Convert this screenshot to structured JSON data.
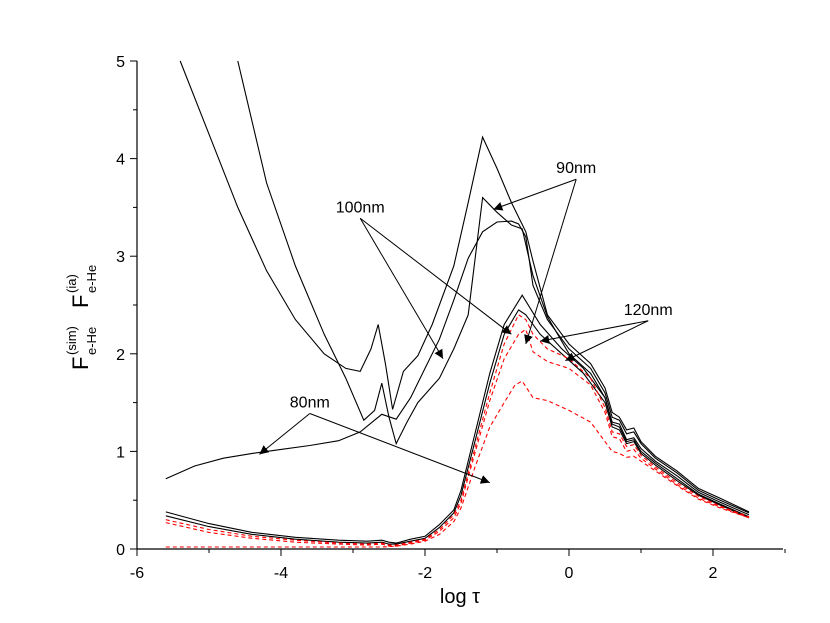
{
  "chart_data": {
    "type": "line",
    "xlabel": "log τ",
    "ylabel": {
      "part1": {
        "main": "F",
        "sup": "(sim)",
        "sub": "e-He"
      },
      "part2": {
        "main": "F",
        "sup": "(ia)",
        "sub": "e-He"
      }
    },
    "xlim": [
      -6,
      3
    ],
    "ylim": [
      0,
      5
    ],
    "xticks": [
      -6,
      -4,
      -2,
      0,
      2
    ],
    "yticks": [
      0,
      1,
      2,
      3,
      4,
      5
    ],
    "grid": false,
    "legend": "none",
    "colors": {
      "solid": "#000000",
      "dashed": "#ff0000"
    },
    "series": [
      {
        "style": "solid",
        "points": [
          [
            -5.6,
            0.72
          ],
          [
            -5.2,
            0.85
          ],
          [
            -4.8,
            0.93
          ],
          [
            -4.4,
            0.98
          ],
          [
            -4.0,
            1.02
          ],
          [
            -3.6,
            1.06
          ],
          [
            -3.2,
            1.11
          ],
          [
            -2.9,
            1.2
          ],
          [
            -2.6,
            1.38
          ],
          [
            -2.4,
            1.33
          ],
          [
            -2.2,
            1.55
          ],
          [
            -2.0,
            1.85
          ],
          [
            -1.8,
            2.15
          ],
          [
            -1.6,
            2.55
          ],
          [
            -1.4,
            2.98
          ],
          [
            -1.2,
            3.25
          ],
          [
            -1.0,
            3.35
          ],
          [
            -0.8,
            3.36
          ],
          [
            -0.7,
            3.33
          ],
          [
            -0.6,
            3.2
          ],
          [
            -0.5,
            2.7
          ],
          [
            -0.3,
            2.35
          ],
          [
            0,
            2.05
          ],
          [
            0.3,
            1.85
          ],
          [
            0.5,
            1.6
          ],
          [
            0.6,
            1.35
          ],
          [
            0.7,
            1.32
          ],
          [
            0.8,
            1.18
          ],
          [
            0.9,
            1.2
          ],
          [
            1.0,
            1.08
          ],
          [
            1.2,
            0.93
          ],
          [
            1.5,
            0.78
          ],
          [
            1.8,
            0.6
          ],
          [
            2.1,
            0.5
          ],
          [
            2.5,
            0.37
          ]
        ]
      },
      {
        "style": "solid",
        "points": [
          [
            -5.4,
            5.0
          ],
          [
            -5.0,
            4.25
          ],
          [
            -4.6,
            3.5
          ],
          [
            -4.2,
            2.85
          ],
          [
            -3.8,
            2.35
          ],
          [
            -3.4,
            2.0
          ],
          [
            -3.1,
            1.85
          ],
          [
            -2.9,
            1.82
          ],
          [
            -2.75,
            2.05
          ],
          [
            -2.65,
            2.3
          ],
          [
            -2.55,
            1.9
          ],
          [
            -2.45,
            1.43
          ],
          [
            -2.3,
            1.82
          ],
          [
            -2.1,
            1.98
          ],
          [
            -1.9,
            2.3
          ],
          [
            -1.6,
            2.9
          ],
          [
            -1.4,
            3.55
          ],
          [
            -1.2,
            4.22
          ],
          [
            -1.0,
            3.9
          ],
          [
            -0.8,
            3.55
          ],
          [
            -0.6,
            3.25
          ],
          [
            -0.5,
            2.95
          ],
          [
            -0.3,
            2.4
          ],
          [
            0,
            2.1
          ],
          [
            0.3,
            1.9
          ],
          [
            0.5,
            1.65
          ],
          [
            0.6,
            1.4
          ],
          [
            0.7,
            1.35
          ],
          [
            0.8,
            1.22
          ],
          [
            0.9,
            1.24
          ],
          [
            1.0,
            1.1
          ],
          [
            1.2,
            0.95
          ],
          [
            1.5,
            0.8
          ],
          [
            1.8,
            0.62
          ],
          [
            2.1,
            0.52
          ],
          [
            2.5,
            0.38
          ]
        ]
      },
      {
        "style": "solid",
        "points": [
          [
            -4.6,
            5.0
          ],
          [
            -4.2,
            3.75
          ],
          [
            -3.8,
            2.9
          ],
          [
            -3.4,
            2.2
          ],
          [
            -3.1,
            1.75
          ],
          [
            -2.85,
            1.32
          ],
          [
            -2.7,
            1.42
          ],
          [
            -2.6,
            1.7
          ],
          [
            -2.5,
            1.35
          ],
          [
            -2.4,
            1.08
          ],
          [
            -2.25,
            1.3
          ],
          [
            -2.1,
            1.5
          ],
          [
            -1.8,
            1.75
          ],
          [
            -1.6,
            2.05
          ],
          [
            -1.4,
            2.4
          ],
          [
            -1.2,
            3.6
          ],
          [
            -1.0,
            3.45
          ],
          [
            -0.8,
            3.32
          ],
          [
            -0.65,
            3.28
          ],
          [
            -0.5,
            2.8
          ],
          [
            -0.3,
            2.38
          ],
          [
            0,
            2.0
          ],
          [
            0.3,
            1.8
          ],
          [
            0.5,
            1.55
          ],
          [
            0.6,
            1.3
          ],
          [
            0.7,
            1.28
          ],
          [
            0.8,
            1.12
          ],
          [
            0.9,
            1.14
          ],
          [
            1.0,
            1.03
          ],
          [
            1.2,
            0.9
          ],
          [
            1.5,
            0.75
          ],
          [
            1.8,
            0.58
          ],
          [
            2.1,
            0.48
          ],
          [
            2.5,
            0.35
          ]
        ]
      },
      {
        "style": "solid",
        "points": [
          [
            -5.6,
            0.38
          ],
          [
            -5.0,
            0.26
          ],
          [
            -4.4,
            0.17
          ],
          [
            -3.8,
            0.12
          ],
          [
            -3.2,
            0.09
          ],
          [
            -2.8,
            0.08
          ],
          [
            -2.6,
            0.09
          ],
          [
            -2.5,
            0.07
          ],
          [
            -2.4,
            0.06
          ],
          [
            -2.2,
            0.1
          ],
          [
            -2.0,
            0.13
          ],
          [
            -1.8,
            0.25
          ],
          [
            -1.6,
            0.4
          ],
          [
            -1.5,
            0.6
          ],
          [
            -1.3,
            1.2
          ],
          [
            -1.1,
            1.8
          ],
          [
            -0.9,
            2.3
          ],
          [
            -0.65,
            2.6
          ],
          [
            -0.4,
            2.3
          ],
          [
            -0.1,
            2.05
          ],
          [
            0.2,
            1.85
          ],
          [
            0.5,
            1.55
          ],
          [
            0.6,
            1.28
          ],
          [
            0.7,
            1.25
          ],
          [
            0.8,
            1.1
          ],
          [
            0.9,
            1.12
          ],
          [
            1.0,
            1.0
          ],
          [
            1.2,
            0.88
          ],
          [
            1.5,
            0.72
          ],
          [
            1.8,
            0.56
          ],
          [
            2.1,
            0.46
          ],
          [
            2.5,
            0.33
          ]
        ]
      },
      {
        "style": "solid",
        "points": [
          [
            -5.6,
            0.34
          ],
          [
            -5.0,
            0.23
          ],
          [
            -4.4,
            0.15
          ],
          [
            -3.8,
            0.1
          ],
          [
            -3.2,
            0.07
          ],
          [
            -2.8,
            0.06
          ],
          [
            -2.6,
            0.07
          ],
          [
            -2.5,
            0.05
          ],
          [
            -2.4,
            0.05
          ],
          [
            -2.2,
            0.08
          ],
          [
            -2.0,
            0.11
          ],
          [
            -1.8,
            0.22
          ],
          [
            -1.6,
            0.37
          ],
          [
            -1.5,
            0.55
          ],
          [
            -1.3,
            1.12
          ],
          [
            -1.1,
            1.7
          ],
          [
            -0.9,
            2.2
          ],
          [
            -0.7,
            2.45
          ],
          [
            -0.6,
            2.4
          ],
          [
            -0.4,
            2.2
          ],
          [
            -0.1,
            2.0
          ],
          [
            0.2,
            1.8
          ],
          [
            0.5,
            1.5
          ],
          [
            0.6,
            1.25
          ],
          [
            0.7,
            1.22
          ],
          [
            0.8,
            1.08
          ],
          [
            0.9,
            1.1
          ],
          [
            1.0,
            0.98
          ],
          [
            1.2,
            0.86
          ],
          [
            1.5,
            0.7
          ],
          [
            1.8,
            0.55
          ],
          [
            2.1,
            0.45
          ],
          [
            2.5,
            0.32
          ]
        ]
      },
      {
        "style": "dashed",
        "points": [
          [
            -5.6,
            0.3
          ],
          [
            -5.0,
            0.2
          ],
          [
            -4.4,
            0.13
          ],
          [
            -3.8,
            0.09
          ],
          [
            -3.2,
            0.06
          ],
          [
            -2.8,
            0.05
          ],
          [
            -2.6,
            0.06
          ],
          [
            -2.5,
            0.04
          ],
          [
            -2.4,
            0.04
          ],
          [
            -2.2,
            0.07
          ],
          [
            -2.0,
            0.1
          ],
          [
            -1.8,
            0.2
          ],
          [
            -1.6,
            0.35
          ],
          [
            -1.5,
            0.5
          ],
          [
            -1.3,
            1.05
          ],
          [
            -1.1,
            1.6
          ],
          [
            -0.9,
            2.1
          ],
          [
            -0.7,
            2.4
          ],
          [
            -0.6,
            2.35
          ],
          [
            -0.5,
            2.2
          ],
          [
            -0.3,
            2.05
          ],
          [
            0,
            1.95
          ],
          [
            0.3,
            1.75
          ],
          [
            0.5,
            1.45
          ],
          [
            0.6,
            1.2
          ],
          [
            0.7,
            1.18
          ],
          [
            0.8,
            1.05
          ],
          [
            0.9,
            1.07
          ],
          [
            1.0,
            0.96
          ],
          [
            1.2,
            0.84
          ],
          [
            1.5,
            0.68
          ],
          [
            1.8,
            0.54
          ],
          [
            2.1,
            0.44
          ],
          [
            2.5,
            0.33
          ]
        ]
      },
      {
        "style": "dashed",
        "points": [
          [
            -5.6,
            0.27
          ],
          [
            -5.0,
            0.17
          ],
          [
            -4.4,
            0.11
          ],
          [
            -3.8,
            0.07
          ],
          [
            -3.2,
            0.05
          ],
          [
            -2.8,
            0.04
          ],
          [
            -2.6,
            0.05
          ],
          [
            -2.5,
            0.03
          ],
          [
            -2.4,
            0.03
          ],
          [
            -2.2,
            0.06
          ],
          [
            -2.0,
            0.09
          ],
          [
            -1.8,
            0.18
          ],
          [
            -1.6,
            0.32
          ],
          [
            -1.5,
            0.47
          ],
          [
            -1.3,
            1.0
          ],
          [
            -1.1,
            1.52
          ],
          [
            -0.9,
            1.95
          ],
          [
            -0.7,
            2.2
          ],
          [
            -0.6,
            2.25
          ],
          [
            -0.5,
            2.02
          ],
          [
            -0.3,
            1.92
          ],
          [
            0,
            1.85
          ],
          [
            0.3,
            1.68
          ],
          [
            0.5,
            1.4
          ],
          [
            0.6,
            1.15
          ],
          [
            0.7,
            1.13
          ],
          [
            0.8,
            1.0
          ],
          [
            0.9,
            1.02
          ],
          [
            1.0,
            0.93
          ],
          [
            1.2,
            0.82
          ],
          [
            1.5,
            0.66
          ],
          [
            1.8,
            0.52
          ],
          [
            2.1,
            0.43
          ],
          [
            2.5,
            0.32
          ]
        ]
      },
      {
        "style": "dashed",
        "points": [
          [
            -5.6,
            0.02
          ],
          [
            -4.8,
            0.02
          ],
          [
            -4.0,
            0.02
          ],
          [
            -3.2,
            0.02
          ],
          [
            -2.6,
            0.02
          ],
          [
            -2.4,
            0.03
          ],
          [
            -2.2,
            0.05
          ],
          [
            -2.0,
            0.08
          ],
          [
            -1.8,
            0.15
          ],
          [
            -1.6,
            0.28
          ],
          [
            -1.5,
            0.42
          ],
          [
            -1.3,
            0.85
          ],
          [
            -1.1,
            1.25
          ],
          [
            -0.9,
            1.5
          ],
          [
            -0.75,
            1.68
          ],
          [
            -0.65,
            1.72
          ],
          [
            -0.5,
            1.55
          ],
          [
            -0.3,
            1.52
          ],
          [
            0,
            1.42
          ],
          [
            0.3,
            1.3
          ],
          [
            0.5,
            1.1
          ],
          [
            0.6,
            1.0
          ],
          [
            0.7,
            0.98
          ],
          [
            0.8,
            0.94
          ],
          [
            0.9,
            0.95
          ],
          [
            1.0,
            0.9
          ],
          [
            1.2,
            0.8
          ],
          [
            1.5,
            0.65
          ],
          [
            1.8,
            0.51
          ],
          [
            2.1,
            0.42
          ],
          [
            2.5,
            0.32
          ]
        ]
      }
    ],
    "annotations": [
      {
        "label": "90nm",
        "text": [
          0.1,
          3.85
        ],
        "arrows": [
          [
            -1.05,
            3.48
          ],
          [
            -0.6,
            2.1
          ]
        ]
      },
      {
        "label": "100nm",
        "text": [
          -2.9,
          3.45
        ],
        "arrows": [
          [
            -1.75,
            1.95
          ],
          [
            -0.8,
            2.2
          ]
        ]
      },
      {
        "label": "120nm",
        "text": [
          1.1,
          2.4
        ],
        "arrows": [
          [
            -0.4,
            2.13
          ],
          [
            -0.05,
            1.93
          ]
        ]
      },
      {
        "label": "80nm",
        "text": [
          -3.6,
          1.45
        ],
        "arrows": [
          [
            -4.3,
            0.97
          ],
          [
            -1.1,
            0.68
          ]
        ]
      }
    ]
  }
}
